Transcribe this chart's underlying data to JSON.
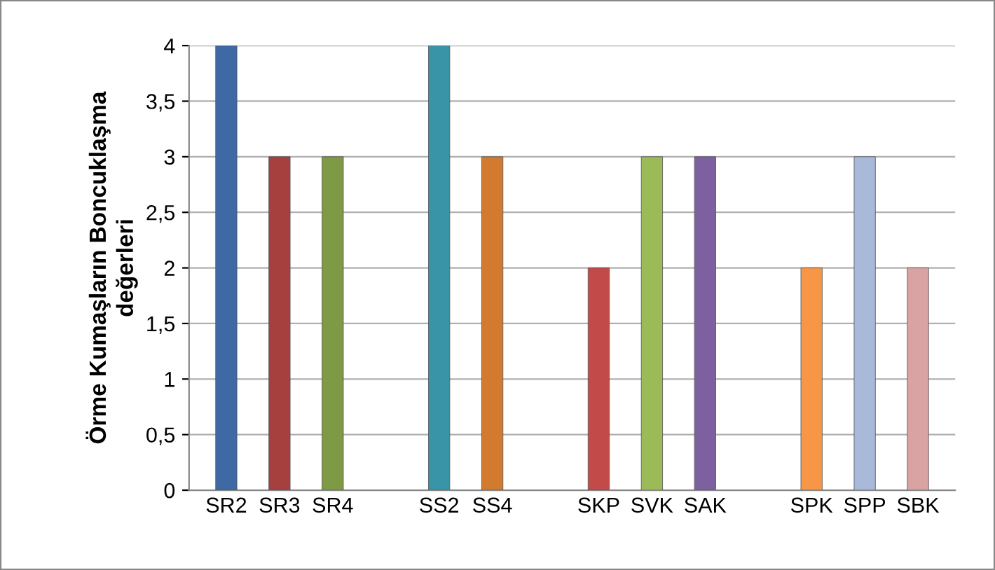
{
  "chart_data": {
    "type": "bar",
    "ylabel": "Örme Kumaşların Boncuklaşma\ndeğerleri",
    "categories": [
      "SR2",
      "SR3",
      "SR4",
      null,
      "SS2",
      "SS4",
      null,
      "SKP",
      "SVK",
      "SAK",
      null,
      "SPK",
      "SPP",
      "SBK"
    ],
    "values": [
      4,
      3,
      3,
      null,
      4,
      3,
      null,
      2,
      3,
      3,
      null,
      2,
      3,
      2
    ],
    "colors": [
      "#3f69a4",
      "#a6403f",
      "#7f9a45",
      "#ffffff",
      "#3a94a8",
      "#d27a2f",
      "#ffffff",
      "#c24a49",
      "#9bbb59",
      "#7d60a0",
      "#ffffff",
      "#f79646",
      "#a9b9da",
      "#d9a3a3"
    ],
    "ylim": [
      0,
      4
    ],
    "yticks": [
      0,
      {
        "value": 0.5,
        "label": "0,5"
      },
      1,
      {
        "value": 1.5,
        "label": "1,5"
      },
      2,
      {
        "value": 2.5,
        "label": "2,5"
      },
      3,
      {
        "value": 3.5,
        "label": "3,5"
      },
      4
    ],
    "grid": "y"
  }
}
